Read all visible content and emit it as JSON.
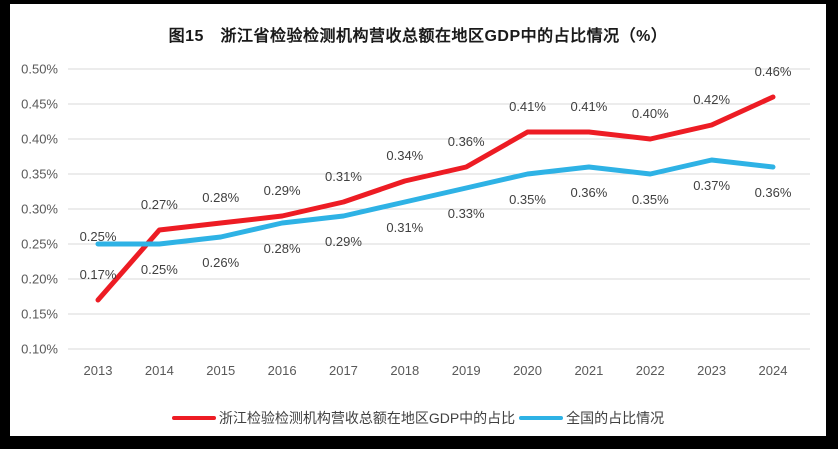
{
  "frame": {
    "background_color": "#000000",
    "panel_color": "#ffffff"
  },
  "title": "图15　浙江省检验检测机构营收总额在地区GDP中的占比情况（%）",
  "chart_data": {
    "type": "line",
    "title": "图15　浙江省检验检测机构营收总额在地区GDP中的占比情况（%）",
    "x": [
      "2013",
      "2014",
      "2015",
      "2016",
      "2017",
      "2018",
      "2019",
      "2020",
      "2021",
      "2022",
      "2023",
      "2024"
    ],
    "xlabel": "",
    "ylabel": "",
    "ylim": [
      0.1,
      0.5
    ],
    "ytick_step": 0.05,
    "yticks_top_to_bottom": [
      "0.50%",
      "0.45%",
      "0.40%",
      "0.35%",
      "0.30%",
      "0.25%",
      "0.20%",
      "0.15%",
      "0.10%"
    ],
    "grid": true,
    "gridline_color": "#d9d9d9",
    "legend_position": "bottom",
    "series": [
      {
        "name": "浙江检验检测机构营收总额在地区GDP中的占比",
        "color": "#ed1c24",
        "stroke_width": 5,
        "values": [
          0.17,
          0.27,
          0.28,
          0.29,
          0.31,
          0.34,
          0.36,
          0.41,
          0.41,
          0.4,
          0.42,
          0.46
        ],
        "labels": [
          "0.17%",
          "0.27%",
          "0.28%",
          "0.29%",
          "0.31%",
          "0.34%",
          "0.36%",
          "0.41%",
          "0.41%",
          "0.40%",
          "0.42%",
          "0.46%"
        ],
        "label_side": "above",
        "label_side_overrides": {}
      },
      {
        "name": "全国的占比情况",
        "color": "#2eb2e5",
        "stroke_width": 5,
        "values": [
          0.25,
          0.25,
          0.26,
          0.28,
          0.29,
          0.31,
          0.33,
          0.35,
          0.36,
          0.35,
          0.37,
          0.36
        ],
        "labels": [
          "0.25%",
          "0.25%",
          "0.26%",
          "0.28%",
          "0.29%",
          "0.31%",
          "0.33%",
          "0.35%",
          "0.36%",
          "0.35%",
          "0.37%",
          "0.36%"
        ],
        "label_side": "below",
        "label_side_overrides": {
          "0": "above"
        }
      }
    ]
  }
}
